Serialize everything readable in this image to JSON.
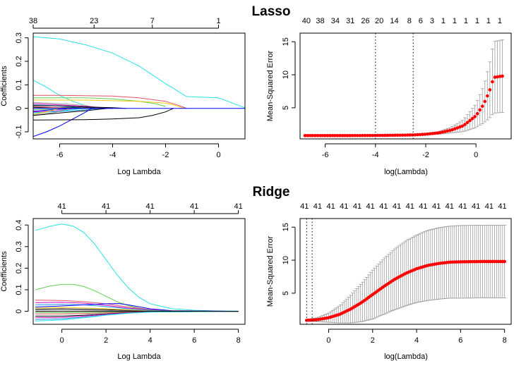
{
  "titles": {
    "lasso": "Lasso",
    "ridge": "Ridge"
  },
  "colors": {
    "path_palette": [
      "#000000",
      "#DF536B",
      "#61D04F",
      "#2297E6",
      "#28E2E5",
      "#CD0BBC",
      "#F5C710",
      "#9E9E9E",
      "#0000FF"
    ],
    "cv_point": "#FF0000",
    "cv_errorbar": "#9E9E9E",
    "lambda_line": "#000000"
  },
  "chart_data": [
    {
      "id": "lasso_path",
      "type": "line",
      "xlabel": "Log Lambda",
      "ylabel": "Coefficients",
      "xlim": [
        -7,
        1
      ],
      "ylim": [
        -0.13,
        0.32
      ],
      "x_ticks": [
        -6,
        -4,
        -2,
        0
      ],
      "y_ticks": [
        -0.1,
        0.0,
        0.1,
        0.2,
        0.3
      ],
      "top_axis": [
        {
          "x": -7,
          "label": "38"
        },
        {
          "x": -4.7,
          "label": "23"
        },
        {
          "x": -2.5,
          "label": "7"
        },
        {
          "x": 0,
          "label": "1"
        }
      ],
      "series": [
        {
          "color": "#28E2E5",
          "x": [
            -7,
            -6,
            -5,
            -4,
            -3,
            -2,
            -1.7,
            -1.5,
            -1.2,
            0,
            1
          ],
          "y": [
            0.305,
            0.295,
            0.27,
            0.235,
            0.18,
            0.105,
            0.085,
            0.07,
            0.05,
            0.045,
            0.002
          ]
        },
        {
          "color": "#28E2E5",
          "x": [
            -7,
            -6.5,
            -6,
            -5.5,
            -5,
            -4.6
          ],
          "y": [
            0.12,
            0.09,
            0.055,
            0.03,
            0.01,
            0.0
          ]
        },
        {
          "color": "#DF536B",
          "x": [
            -7,
            -6,
            -4,
            -3,
            -2,
            -1.5,
            -1.2
          ],
          "y": [
            0.055,
            0.055,
            0.052,
            0.045,
            0.03,
            0.012,
            0.0
          ]
        },
        {
          "color": "#61D04F",
          "x": [
            -7,
            -5,
            -4,
            -3,
            -2.4,
            -2
          ],
          "y": [
            0.045,
            0.045,
            0.04,
            0.03,
            0.02,
            0.008
          ]
        },
        {
          "color": "#F5C710",
          "x": [
            -7,
            -5,
            -3,
            -2,
            -1.7,
            -1.3
          ],
          "y": [
            0.035,
            0.035,
            0.03,
            0.022,
            0.015,
            0.0
          ]
        },
        {
          "color": "#9E9E9E",
          "x": [
            -7,
            -6,
            -5,
            -4.5
          ],
          "y": [
            0.025,
            0.02,
            0.012,
            0.0
          ]
        },
        {
          "color": "#CD0BBC",
          "x": [
            -7,
            -6,
            -5,
            -4
          ],
          "y": [
            0.02,
            0.015,
            0.008,
            0.0
          ]
        },
        {
          "color": "#2297E6",
          "x": [
            -7,
            -6,
            -5.5,
            -5
          ],
          "y": [
            0.015,
            0.01,
            0.005,
            0.0
          ]
        },
        {
          "color": "#000000",
          "x": [
            -7,
            -6,
            -5,
            -4,
            -3.5
          ],
          "y": [
            0.012,
            0.01,
            0.006,
            0.003,
            0.0
          ]
        },
        {
          "color": "#000000",
          "x": [
            -7,
            -6,
            -5,
            -4
          ],
          "y": [
            0.004,
            0.003,
            0.002,
            0.0
          ]
        },
        {
          "color": "#DF536B",
          "x": [
            -7,
            -6.5,
            -6,
            -5.8
          ],
          "y": [
            0.008,
            0.005,
            0.002,
            0.0
          ]
        },
        {
          "color": "#61D04F",
          "x": [
            -7,
            -6,
            -5.3
          ],
          "y": [
            -0.005,
            -0.003,
            0.0
          ]
        },
        {
          "color": "#0000FF",
          "x": [
            -7,
            -6.5,
            -6,
            -5.5,
            -5.3
          ],
          "y": [
            -0.012,
            -0.008,
            -0.004,
            -0.001,
            0.0
          ]
        },
        {
          "color": "#CD0BBC",
          "x": [
            -7,
            -6,
            -5.5
          ],
          "y": [
            -0.015,
            -0.01,
            0.0
          ]
        },
        {
          "color": "#2297E6",
          "x": [
            -7,
            -6,
            -5,
            -4.5
          ],
          "y": [
            -0.018,
            -0.014,
            -0.006,
            0.0
          ]
        },
        {
          "color": "#28E2E5",
          "x": [
            -7,
            -6,
            -5.5,
            -5
          ],
          "y": [
            -0.02,
            -0.012,
            -0.005,
            0.0
          ]
        },
        {
          "color": "#F5C710",
          "x": [
            -7,
            -6.5,
            -6
          ],
          "y": [
            -0.025,
            -0.015,
            0.0
          ]
        },
        {
          "color": "#9E9E9E",
          "x": [
            -7,
            -6.2,
            -5.6
          ],
          "y": [
            -0.028,
            -0.018,
            0.0
          ]
        },
        {
          "color": "#000000",
          "x": [
            -7,
            -6,
            -5,
            -4.2
          ],
          "y": [
            -0.03,
            -0.02,
            -0.01,
            0.0
          ]
        },
        {
          "color": "#0000FF",
          "x": [
            -7,
            -6.5,
            -6,
            -5.5,
            -5,
            -4.8
          ],
          "y": [
            -0.12,
            -0.1,
            -0.075,
            -0.045,
            -0.015,
            0.0
          ]
        },
        {
          "color": "#000000",
          "x": [
            -7,
            -5,
            -4,
            -3,
            -2.5,
            -2,
            -1.7
          ],
          "y": [
            -0.05,
            -0.048,
            -0.045,
            -0.04,
            -0.03,
            -0.015,
            0.0
          ]
        },
        {
          "color": "#0000FF",
          "x": [
            -7,
            1
          ],
          "y": [
            0.0,
            0.0
          ]
        }
      ]
    },
    {
      "id": "lasso_cv",
      "type": "scatter",
      "xlabel": "log(Lambda)",
      "ylabel": "Mean-Squared Error",
      "xlim": [
        -7,
        1.4
      ],
      "ylim": [
        0.3,
        16.3
      ],
      "x_ticks": [
        -6,
        -4,
        -2,
        0
      ],
      "y_ticks": [
        5,
        10,
        15
      ],
      "vlines": [
        -4.0,
        -2.5
      ],
      "top_axis": [
        {
          "x": -6.75,
          "label": "40"
        },
        {
          "x": -6.2,
          "label": "38"
        },
        {
          "x": -5.6,
          "label": "34"
        },
        {
          "x": -5.0,
          "label": "31"
        },
        {
          "x": -4.4,
          "label": "26"
        },
        {
          "x": -3.85,
          "label": "20"
        },
        {
          "x": -3.25,
          "label": "14"
        },
        {
          "x": -2.65,
          "label": "8"
        },
        {
          "x": -2.2,
          "label": "6"
        },
        {
          "x": -1.75,
          "label": "3"
        },
        {
          "x": -1.3,
          "label": "1"
        },
        {
          "x": -0.85,
          "label": "1"
        },
        {
          "x": -0.4,
          "label": "1"
        },
        {
          "x": 0.05,
          "label": "1"
        },
        {
          "x": 0.5,
          "label": "1"
        },
        {
          "x": 0.95,
          "label": "1"
        }
      ],
      "cv_range": [
        -6.8,
        1.05
      ],
      "cv_count": 80,
      "cv_curve": {
        "log_lambda": [
          -6.8,
          -5.0,
          -4.0,
          -3.0,
          -2.5,
          -2.0,
          -1.5,
          -1.0,
          -0.5,
          0.0,
          0.3,
          0.5,
          0.6,
          0.7,
          1.05
        ],
        "mse": [
          0.8,
          0.8,
          0.82,
          0.86,
          0.9,
          1.0,
          1.2,
          1.6,
          2.3,
          3.8,
          5.5,
          7.2,
          8.2,
          9.6,
          9.8
        ],
        "se": [
          0.05,
          0.05,
          0.05,
          0.06,
          0.07,
          0.1,
          0.2,
          0.4,
          0.9,
          1.8,
          2.8,
          3.9,
          4.5,
          5.4,
          5.5
        ]
      }
    },
    {
      "id": "ridge_path",
      "type": "line",
      "xlabel": "Log Lambda",
      "ylabel": "Coefficients",
      "xlim": [
        -1.3,
        8.3
      ],
      "ylim": [
        -0.06,
        0.43
      ],
      "x_ticks": [
        0,
        2,
        4,
        6,
        8
      ],
      "y_ticks": [
        0.0,
        0.1,
        0.2,
        0.3,
        0.4
      ],
      "top_axis": [
        {
          "x": 0,
          "label": "41"
        },
        {
          "x": 2,
          "label": "41"
        },
        {
          "x": 4,
          "label": "41"
        },
        {
          "x": 6,
          "label": "41"
        },
        {
          "x": 8,
          "label": "41"
        }
      ],
      "series": [
        {
          "color": "#28E2E5",
          "x": [
            -1.2,
            -0.5,
            0,
            0.5,
            1,
            1.5,
            2,
            2.5,
            3,
            3.5,
            4,
            5,
            6,
            7,
            8
          ],
          "y": [
            0.375,
            0.395,
            0.405,
            0.395,
            0.365,
            0.31,
            0.24,
            0.17,
            0.11,
            0.065,
            0.035,
            0.012,
            0.005,
            0.002,
            0.001
          ]
        },
        {
          "color": "#61D04F",
          "x": [
            -1.2,
            -0.5,
            0,
            0.5,
            1,
            1.5,
            2,
            2.5,
            3,
            3.5,
            4,
            5,
            6,
            8
          ],
          "y": [
            0.1,
            0.118,
            0.125,
            0.125,
            0.115,
            0.095,
            0.07,
            0.045,
            0.027,
            0.015,
            0.008,
            0.003,
            0.001,
            0.0
          ]
        },
        {
          "color": "#DF536B",
          "x": [
            -1.2,
            0,
            1,
            2,
            3,
            4,
            5,
            8
          ],
          "y": [
            0.052,
            0.05,
            0.045,
            0.035,
            0.02,
            0.008,
            0.002,
            0.0
          ]
        },
        {
          "color": "#CD0BBC",
          "x": [
            -1.2,
            0,
            1,
            2,
            3,
            4,
            5,
            8
          ],
          "y": [
            0.04,
            0.042,
            0.038,
            0.028,
            0.015,
            0.006,
            0.002,
            0.0
          ]
        },
        {
          "color": "#2297E6",
          "x": [
            -1.2,
            0,
            1,
            2,
            3,
            4,
            5,
            8
          ],
          "y": [
            0.03,
            0.032,
            0.03,
            0.022,
            0.012,
            0.005,
            0.001,
            0.0
          ]
        },
        {
          "color": "#0000FF",
          "x": [
            -1.2,
            0,
            1,
            2,
            2.6,
            3,
            4,
            5,
            8
          ],
          "y": [
            0.02,
            0.025,
            0.03,
            0.035,
            0.036,
            0.03,
            0.012,
            0.003,
            0.0
          ]
        },
        {
          "color": "#F5C710",
          "x": [
            -1.2,
            0,
            1,
            2,
            3,
            4,
            8
          ],
          "y": [
            0.015,
            0.018,
            0.016,
            0.012,
            0.007,
            0.002,
            0.0
          ]
        },
        {
          "color": "#000000",
          "x": [
            -1.2,
            0,
            1,
            2,
            3,
            4,
            8
          ],
          "y": [
            0.01,
            0.012,
            0.01,
            0.008,
            0.004,
            0.001,
            0.0
          ]
        },
        {
          "color": "#9E9E9E",
          "x": [
            -1.2,
            0,
            1,
            2,
            3,
            4,
            8
          ],
          "y": [
            0.005,
            0.006,
            0.005,
            0.004,
            0.002,
            0.001,
            0.0
          ]
        },
        {
          "color": "#61D04F",
          "x": [
            -1.2,
            0,
            1,
            2,
            3,
            4,
            8
          ],
          "y": [
            -0.005,
            -0.006,
            -0.005,
            -0.004,
            -0.002,
            -0.001,
            0.0
          ]
        },
        {
          "color": "#DF536B",
          "x": [
            -1.2,
            0,
            1,
            2,
            3,
            4,
            8
          ],
          "y": [
            -0.012,
            -0.012,
            -0.01,
            -0.007,
            -0.004,
            -0.001,
            0.0
          ]
        },
        {
          "color": "#000000",
          "x": [
            -1.2,
            0,
            1,
            2,
            3,
            4,
            8
          ],
          "y": [
            -0.022,
            -0.022,
            -0.018,
            -0.012,
            -0.006,
            -0.002,
            0.0
          ]
        },
        {
          "color": "#CD0BBC",
          "x": [
            -1.2,
            0,
            1,
            2,
            3,
            4,
            8
          ],
          "y": [
            -0.03,
            -0.028,
            -0.022,
            -0.014,
            -0.007,
            -0.002,
            0.0
          ]
        },
        {
          "color": "#2297E6",
          "x": [
            -1.2,
            0,
            1,
            2,
            3,
            4,
            8
          ],
          "y": [
            -0.038,
            -0.035,
            -0.027,
            -0.017,
            -0.008,
            -0.003,
            0.0
          ]
        },
        {
          "color": "#28E2E5",
          "x": [
            -1.2,
            0,
            1,
            2,
            3,
            4,
            8
          ],
          "y": [
            -0.045,
            -0.04,
            -0.03,
            -0.018,
            -0.009,
            -0.003,
            0.0
          ]
        },
        {
          "color": "#000000",
          "x": [
            -1.2,
            8
          ],
          "y": [
            0.0,
            0.0
          ]
        }
      ]
    },
    {
      "id": "ridge_cv",
      "type": "scatter",
      "xlabel": "log(Lambda)",
      "ylabel": "Mean-Squared Error",
      "xlim": [
        -1.3,
        8.3
      ],
      "ylim": [
        0.3,
        16.3
      ],
      "x_ticks": [
        0,
        2,
        4,
        6,
        8
      ],
      "y_ticks": [
        5,
        10,
        15
      ],
      "vlines": [
        -1.0,
        -0.75
      ],
      "top_axis": [
        {
          "x": -1.1,
          "label": "41"
        },
        {
          "x": -0.5,
          "label": "41"
        },
        {
          "x": 0.1,
          "label": "41"
        },
        {
          "x": 0.7,
          "label": "41"
        },
        {
          "x": 1.3,
          "label": "41"
        },
        {
          "x": 1.9,
          "label": "41"
        },
        {
          "x": 2.5,
          "label": "41"
        },
        {
          "x": 3.1,
          "label": "41"
        },
        {
          "x": 3.7,
          "label": "41"
        },
        {
          "x": 4.3,
          "label": "41"
        },
        {
          "x": 4.9,
          "label": "41"
        },
        {
          "x": 5.5,
          "label": "41"
        },
        {
          "x": 6.1,
          "label": "41"
        },
        {
          "x": 6.7,
          "label": "41"
        },
        {
          "x": 7.3,
          "label": "41"
        },
        {
          "x": 7.9,
          "label": "41"
        }
      ],
      "cv_range": [
        -1.0,
        8.0
      ],
      "cv_count": 100,
      "cv_curve": {
        "log_lambda": [
          -1.0,
          -0.5,
          0.0,
          0.5,
          1.0,
          1.5,
          2.0,
          2.5,
          3.0,
          3.5,
          4.0,
          4.5,
          5.0,
          5.5,
          6.0,
          7.0,
          8.0
        ],
        "mse": [
          0.9,
          1.0,
          1.3,
          1.8,
          2.6,
          3.6,
          4.8,
          6.0,
          7.1,
          8.0,
          8.7,
          9.2,
          9.5,
          9.7,
          9.75,
          9.8,
          9.8
        ],
        "se": [
          0.15,
          0.3,
          0.7,
          1.3,
          2.1,
          2.9,
          3.7,
          4.2,
          4.6,
          4.9,
          5.1,
          5.3,
          5.4,
          5.45,
          5.5,
          5.5,
          5.5
        ]
      }
    }
  ]
}
